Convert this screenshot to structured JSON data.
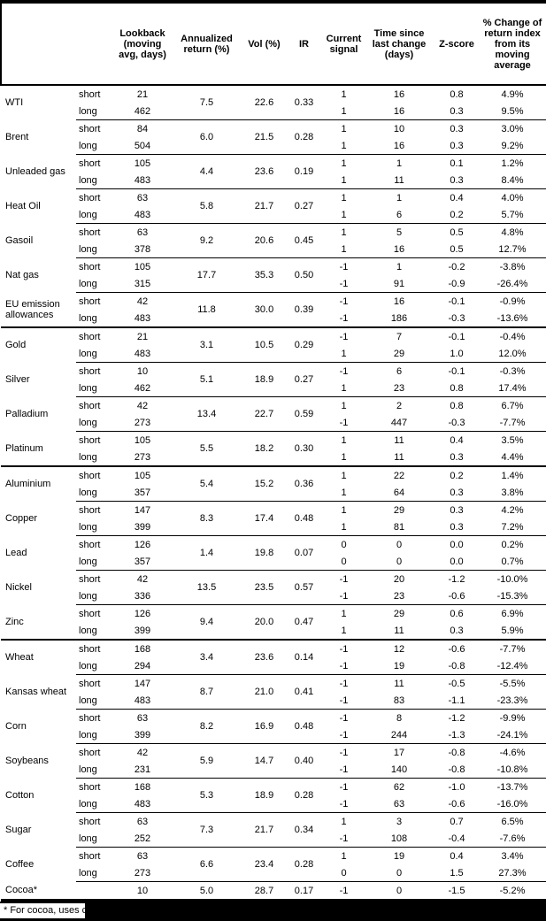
{
  "palette": {
    "text": "#000000",
    "background": "#ffffff",
    "rule_color": "#000000",
    "redaction_color": "#000000"
  },
  "table": {
    "columns": [
      {
        "id": "commodity",
        "label": ""
      },
      {
        "id": "leg",
        "label": ""
      },
      {
        "id": "lookback",
        "label": "Lookback (moving avg, days)"
      },
      {
        "id": "annualized_return",
        "label": "Annualized return (%)"
      },
      {
        "id": "vol",
        "label": "Vol (%)"
      },
      {
        "id": "ir",
        "label": "IR"
      },
      {
        "id": "current_signal",
        "label": "Current signal"
      },
      {
        "id": "time_since",
        "label": "Time since last change (days)"
      },
      {
        "id": "zscore",
        "label": "Z-score"
      },
      {
        "id": "pct_change",
        "label": "% Change of return index from its moving average"
      }
    ],
    "sections": [
      {
        "name": "energy",
        "commodities": [
          {
            "name": "WTI",
            "annualized_return": "7.5",
            "vol": "22.6",
            "ir": "0.33",
            "legs": [
              {
                "leg": "short",
                "lookback": "21",
                "current_signal": "1",
                "time_since": "16",
                "zscore": "0.8",
                "pct_change": "4.9%"
              },
              {
                "leg": "long",
                "lookback": "462",
                "current_signal": "1",
                "time_since": "16",
                "zscore": "0.3",
                "pct_change": "9.5%"
              }
            ]
          },
          {
            "name": "Brent",
            "annualized_return": "6.0",
            "vol": "21.5",
            "ir": "0.28",
            "legs": [
              {
                "leg": "short",
                "lookback": "84",
                "current_signal": "1",
                "time_since": "10",
                "zscore": "0.3",
                "pct_change": "3.0%"
              },
              {
                "leg": "long",
                "lookback": "504",
                "current_signal": "1",
                "time_since": "16",
                "zscore": "0.3",
                "pct_change": "9.2%"
              }
            ]
          },
          {
            "name": "Unleaded gas",
            "annualized_return": "4.4",
            "vol": "23.6",
            "ir": "0.19",
            "legs": [
              {
                "leg": "short",
                "lookback": "105",
                "current_signal": "1",
                "time_since": "1",
                "zscore": "0.1",
                "pct_change": "1.2%"
              },
              {
                "leg": "long",
                "lookback": "483",
                "current_signal": "1",
                "time_since": "11",
                "zscore": "0.3",
                "pct_change": "8.4%"
              }
            ]
          },
          {
            "name": "Heat Oil",
            "annualized_return": "5.8",
            "vol": "21.7",
            "ir": "0.27",
            "legs": [
              {
                "leg": "short",
                "lookback": "63",
                "current_signal": "1",
                "time_since": "1",
                "zscore": "0.4",
                "pct_change": "4.0%"
              },
              {
                "leg": "long",
                "lookback": "483",
                "current_signal": "1",
                "time_since": "6",
                "zscore": "0.2",
                "pct_change": "5.7%"
              }
            ]
          },
          {
            "name": "Gasoil",
            "annualized_return": "9.2",
            "vol": "20.6",
            "ir": "0.45",
            "legs": [
              {
                "leg": "short",
                "lookback": "63",
                "current_signal": "1",
                "time_since": "5",
                "zscore": "0.5",
                "pct_change": "4.8%"
              },
              {
                "leg": "long",
                "lookback": "378",
                "current_signal": "1",
                "time_since": "16",
                "zscore": "0.5",
                "pct_change": "12.7%"
              }
            ]
          },
          {
            "name": "Nat gas",
            "annualized_return": "17.7",
            "vol": "35.3",
            "ir": "0.50",
            "legs": [
              {
                "leg": "short",
                "lookback": "105",
                "current_signal": "-1",
                "time_since": "1",
                "zscore": "-0.2",
                "pct_change": "-3.8%"
              },
              {
                "leg": "long",
                "lookback": "315",
                "current_signal": "-1",
                "time_since": "91",
                "zscore": "-0.9",
                "pct_change": "-26.4%"
              }
            ]
          },
          {
            "name": "EU emission allowances",
            "annualized_return": "11.8",
            "vol": "30.0",
            "ir": "0.39",
            "legs": [
              {
                "leg": "short",
                "lookback": "42",
                "current_signal": "-1",
                "time_since": "16",
                "zscore": "-0.1",
                "pct_change": "-0.9%"
              },
              {
                "leg": "long",
                "lookback": "483",
                "current_signal": "-1",
                "time_since": "186",
                "zscore": "-0.3",
                "pct_change": "-13.6%"
              }
            ]
          }
        ]
      },
      {
        "name": "precious-metals",
        "commodities": [
          {
            "name": "Gold",
            "annualized_return": "3.1",
            "vol": "10.5",
            "ir": "0.29",
            "legs": [
              {
                "leg": "short",
                "lookback": "21",
                "current_signal": "-1",
                "time_since": "7",
                "zscore": "-0.1",
                "pct_change": "-0.4%"
              },
              {
                "leg": "long",
                "lookback": "483",
                "current_signal": "1",
                "time_since": "29",
                "zscore": "1.0",
                "pct_change": "12.0%"
              }
            ]
          },
          {
            "name": "Silver",
            "annualized_return": "5.1",
            "vol": "18.9",
            "ir": "0.27",
            "legs": [
              {
                "leg": "short",
                "lookback": "10",
                "current_signal": "-1",
                "time_since": "6",
                "zscore": "-0.1",
                "pct_change": "-0.3%"
              },
              {
                "leg": "long",
                "lookback": "462",
                "current_signal": "1",
                "time_since": "23",
                "zscore": "0.8",
                "pct_change": "17.4%"
              }
            ]
          },
          {
            "name": "Palladium",
            "annualized_return": "13.4",
            "vol": "22.7",
            "ir": "0.59",
            "legs": [
              {
                "leg": "short",
                "lookback": "42",
                "current_signal": "1",
                "time_since": "2",
                "zscore": "0.8",
                "pct_change": "6.7%"
              },
              {
                "leg": "long",
                "lookback": "273",
                "current_signal": "-1",
                "time_since": "447",
                "zscore": "-0.3",
                "pct_change": "-7.7%"
              }
            ]
          },
          {
            "name": "Platinum",
            "annualized_return": "5.5",
            "vol": "18.2",
            "ir": "0.30",
            "legs": [
              {
                "leg": "short",
                "lookback": "105",
                "current_signal": "1",
                "time_since": "11",
                "zscore": "0.4",
                "pct_change": "3.5%"
              },
              {
                "leg": "long",
                "lookback": "273",
                "current_signal": "1",
                "time_since": "11",
                "zscore": "0.3",
                "pct_change": "4.4%"
              }
            ]
          }
        ]
      },
      {
        "name": "base-metals",
        "commodities": [
          {
            "name": "Aluminium",
            "annualized_return": "5.4",
            "vol": "15.2",
            "ir": "0.36",
            "legs": [
              {
                "leg": "short",
                "lookback": "105",
                "current_signal": "1",
                "time_since": "22",
                "zscore": "0.2",
                "pct_change": "1.4%"
              },
              {
                "leg": "long",
                "lookback": "357",
                "current_signal": "1",
                "time_since": "64",
                "zscore": "0.3",
                "pct_change": "3.8%"
              }
            ]
          },
          {
            "name": "Copper",
            "annualized_return": "8.3",
            "vol": "17.4",
            "ir": "0.48",
            "legs": [
              {
                "leg": "short",
                "lookback": "147",
                "current_signal": "1",
                "time_since": "29",
                "zscore": "0.3",
                "pct_change": "4.2%"
              },
              {
                "leg": "long",
                "lookback": "399",
                "current_signal": "1",
                "time_since": "81",
                "zscore": "0.3",
                "pct_change": "7.2%"
              }
            ]
          },
          {
            "name": "Lead",
            "annualized_return": "1.4",
            "vol": "19.8",
            "ir": "0.07",
            "legs": [
              {
                "leg": "short",
                "lookback": "126",
                "current_signal": "0",
                "time_since": "0",
                "zscore": "0.0",
                "pct_change": "0.2%"
              },
              {
                "leg": "long",
                "lookback": "357",
                "current_signal": "0",
                "time_since": "0",
                "zscore": "0.0",
                "pct_change": "0.7%"
              }
            ]
          },
          {
            "name": "Nickel",
            "annualized_return": "13.5",
            "vol": "23.5",
            "ir": "0.57",
            "legs": [
              {
                "leg": "short",
                "lookback": "42",
                "current_signal": "-1",
                "time_since": "20",
                "zscore": "-1.2",
                "pct_change": "-10.0%"
              },
              {
                "leg": "long",
                "lookback": "336",
                "current_signal": "-1",
                "time_since": "23",
                "zscore": "-0.6",
                "pct_change": "-15.3%"
              }
            ]
          },
          {
            "name": "Zinc",
            "annualized_return": "9.4",
            "vol": "20.0",
            "ir": "0.47",
            "legs": [
              {
                "leg": "short",
                "lookback": "126",
                "current_signal": "1",
                "time_since": "29",
                "zscore": "0.6",
                "pct_change": "6.9%"
              },
              {
                "leg": "long",
                "lookback": "399",
                "current_signal": "1",
                "time_since": "11",
                "zscore": "0.3",
                "pct_change": "5.9%"
              }
            ]
          }
        ]
      },
      {
        "name": "agriculture",
        "commodities": [
          {
            "name": "Wheat",
            "annualized_return": "3.4",
            "vol": "23.6",
            "ir": "0.14",
            "legs": [
              {
                "leg": "short",
                "lookback": "168",
                "current_signal": "-1",
                "time_since": "12",
                "zscore": "-0.6",
                "pct_change": "-7.7%"
              },
              {
                "leg": "long",
                "lookback": "294",
                "current_signal": "-1",
                "time_since": "19",
                "zscore": "-0.8",
                "pct_change": "-12.4%"
              }
            ]
          },
          {
            "name": "Kansas wheat",
            "annualized_return": "8.7",
            "vol": "21.0",
            "ir": "0.41",
            "legs": [
              {
                "leg": "short",
                "lookback": "147",
                "current_signal": "-1",
                "time_since": "11",
                "zscore": "-0.5",
                "pct_change": "-5.5%"
              },
              {
                "leg": "long",
                "lookback": "483",
                "current_signal": "-1",
                "time_since": "83",
                "zscore": "-1.1",
                "pct_change": "-23.3%"
              }
            ]
          },
          {
            "name": "Corn",
            "annualized_return": "8.2",
            "vol": "16.9",
            "ir": "0.48",
            "legs": [
              {
                "leg": "short",
                "lookback": "63",
                "current_signal": "-1",
                "time_since": "8",
                "zscore": "-1.2",
                "pct_change": "-9.9%"
              },
              {
                "leg": "long",
                "lookback": "399",
                "current_signal": "-1",
                "time_since": "244",
                "zscore": "-1.3",
                "pct_change": "-24.1%"
              }
            ]
          },
          {
            "name": "Soybeans",
            "annualized_return": "5.9",
            "vol": "14.7",
            "ir": "0.40",
            "legs": [
              {
                "leg": "short",
                "lookback": "42",
                "current_signal": "-1",
                "time_since": "17",
                "zscore": "-0.8",
                "pct_change": "-4.6%"
              },
              {
                "leg": "long",
                "lookback": "231",
                "current_signal": "-1",
                "time_since": "140",
                "zscore": "-0.8",
                "pct_change": "-10.8%"
              }
            ]
          },
          {
            "name": "Cotton",
            "annualized_return": "5.3",
            "vol": "18.9",
            "ir": "0.28",
            "legs": [
              {
                "leg": "short",
                "lookback": "168",
                "current_signal": "-1",
                "time_since": "62",
                "zscore": "-1.0",
                "pct_change": "-13.7%"
              },
              {
                "leg": "long",
                "lookback": "483",
                "current_signal": "-1",
                "time_since": "63",
                "zscore": "-0.6",
                "pct_change": "-16.0%"
              }
            ]
          },
          {
            "name": "Sugar",
            "annualized_return": "7.3",
            "vol": "21.7",
            "ir": "0.34",
            "legs": [
              {
                "leg": "short",
                "lookback": "63",
                "current_signal": "1",
                "time_since": "3",
                "zscore": "0.7",
                "pct_change": "6.5%"
              },
              {
                "leg": "long",
                "lookback": "252",
                "current_signal": "-1",
                "time_since": "108",
                "zscore": "-0.4",
                "pct_change": "-7.6%"
              }
            ]
          },
          {
            "name": "Coffee",
            "annualized_return": "6.6",
            "vol": "23.4",
            "ir": "0.28",
            "legs": [
              {
                "leg": "short",
                "lookback": "63",
                "current_signal": "1",
                "time_since": "19",
                "zscore": "0.4",
                "pct_change": "3.4%"
              },
              {
                "leg": "long",
                "lookback": "273",
                "current_signal": "0",
                "time_since": "0",
                "zscore": "1.5",
                "pct_change": "27.3%"
              }
            ]
          },
          {
            "name": "Cocoa*",
            "annualized_return": "5.0",
            "vol": "28.7",
            "ir": "0.17",
            "legs": [
              {
                "leg": "",
                "lookback": "10",
                "current_signal": "-1",
                "time_since": "0",
                "zscore": "-1.5",
                "pct_change": "-5.2%"
              }
            ]
          }
        ]
      }
    ],
    "footnote": {
      "visible_text": "* For cocoa, uses c",
      "redacted": true
    }
  }
}
